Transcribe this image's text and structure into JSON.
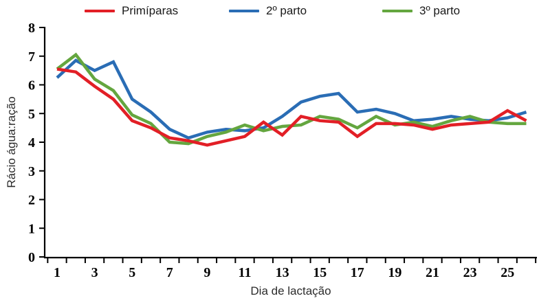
{
  "chart_data": {
    "type": "line",
    "title": "",
    "xlabel": "Dia de lactação",
    "ylabel": "Rácio água:ração",
    "ylim": [
      0,
      8
    ],
    "yticks": [
      0,
      1,
      2,
      3,
      4,
      5,
      6,
      7,
      8
    ],
    "x": [
      1,
      2,
      3,
      4,
      5,
      6,
      7,
      8,
      9,
      10,
      11,
      12,
      13,
      14,
      15,
      16,
      17,
      18,
      19,
      20,
      21,
      22,
      23,
      24,
      25,
      26
    ],
    "xtick_labels": [
      1,
      3,
      5,
      7,
      9,
      11,
      13,
      15,
      17,
      19,
      21,
      23,
      25
    ],
    "grid": false,
    "legend_position": "top",
    "series": [
      {
        "name": "Primíparas",
        "color": "#e21f26",
        "values": [
          6.55,
          6.45,
          5.95,
          5.5,
          4.75,
          4.5,
          4.15,
          4.05,
          3.9,
          4.05,
          4.2,
          4.7,
          4.25,
          4.9,
          4.75,
          4.7,
          4.2,
          4.65,
          4.65,
          4.6,
          4.45,
          4.6,
          4.65,
          4.7,
          5.1,
          4.75
        ]
      },
      {
        "name": "2º parto",
        "color": "#2a6db5",
        "values": [
          6.25,
          6.85,
          6.5,
          6.8,
          5.5,
          5.05,
          4.45,
          4.15,
          4.35,
          4.45,
          4.4,
          4.5,
          4.9,
          5.4,
          5.6,
          5.7,
          5.05,
          5.15,
          5.0,
          4.75,
          4.8,
          4.9,
          4.8,
          4.75,
          4.85,
          5.05
        ]
      },
      {
        "name": "3º parto",
        "color": "#64a63f",
        "values": [
          6.55,
          7.05,
          6.2,
          5.8,
          4.95,
          4.65,
          4.0,
          3.95,
          4.2,
          4.35,
          4.6,
          4.4,
          4.55,
          4.6,
          4.9,
          4.8,
          4.5,
          4.9,
          4.6,
          4.7,
          4.55,
          4.75,
          4.9,
          4.7,
          4.65,
          4.65
        ]
      }
    ],
    "draw_order": [
      1,
      2,
      0
    ],
    "axis_color": "#000000"
  }
}
